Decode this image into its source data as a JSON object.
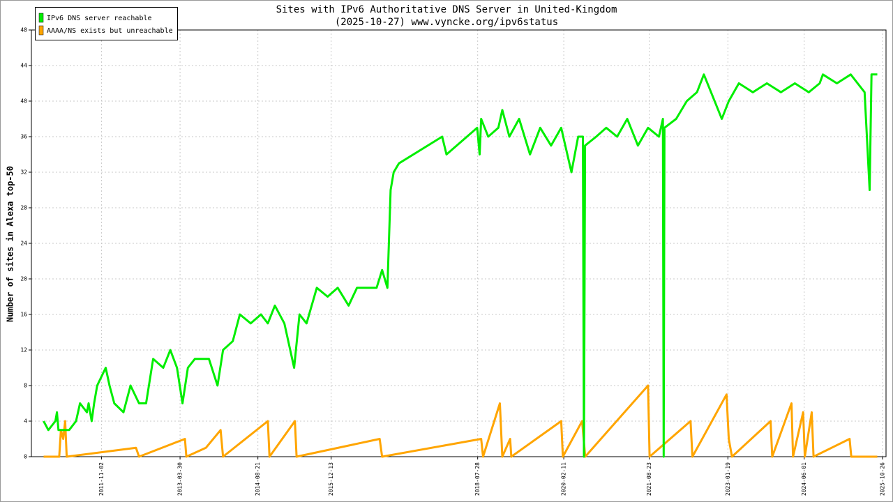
{
  "chart_data": {
    "type": "line",
    "title": "Sites with IPv6 Authoritative DNS Server in United-Kingdom",
    "subtitle": "(2025-10-27) www.vyncke.org/ipv6status",
    "y_label": "Number of sites in Alexa top-50",
    "xlim": [
      "2010-08-01",
      "2025-11-18"
    ],
    "xticks": [
      "2011-11-02",
      "2013-03-30",
      "2014-08-21",
      "2015-12-13",
      "2018-07-28",
      "2020-02-11",
      "2021-08-23",
      "2023-01-19",
      "2024-06-01",
      "2025-10-26"
    ],
    "ylim": [
      0,
      48
    ],
    "yticks": [
      0,
      4,
      8,
      12,
      16,
      20,
      24,
      28,
      32,
      36,
      40,
      44,
      48
    ],
    "grid": true,
    "legend": "top-left",
    "series": [
      {
        "name": "IPv6 DNS server reachable",
        "color": "#00ee00",
        "x": [
          "2010-10-20",
          "2010-11-20",
          "2011-01-05",
          "2011-01-15",
          "2011-01-25",
          "2011-04-05",
          "2011-05-20",
          "2011-06-15",
          "2011-07-30",
          "2011-08-10",
          "2011-08-30",
          "2011-09-15",
          "2011-10-05",
          "2011-11-30",
          "2011-12-25",
          "2012-01-25",
          "2012-03-25",
          "2012-05-10",
          "2012-07-05",
          "2012-08-20",
          "2012-10-05",
          "2012-12-10",
          "2013-01-25",
          "2013-03-10",
          "2013-04-15",
          "2013-05-20",
          "2013-07-05",
          "2013-10-05",
          "2013-11-30",
          "2014-01-05",
          "2014-03-10",
          "2014-04-25",
          "2014-07-05",
          "2014-09-10",
          "2014-10-25",
          "2014-12-10",
          "2015-02-10",
          "2015-04-15",
          "2015-05-20",
          "2015-07-05",
          "2015-09-10",
          "2015-11-20",
          "2016-01-25",
          "2016-04-05",
          "2016-05-30",
          "2016-10-05",
          "2016-11-10",
          "2016-12-15",
          "2017-01-05",
          "2017-01-25",
          "2017-02-28",
          "2017-12-08",
          "2018-01-05",
          "2018-07-25",
          "2018-08-10",
          "2018-08-20",
          "2018-10-05",
          "2018-12-10",
          "2019-01-05",
          "2019-02-20",
          "2019-04-25",
          "2019-07-05",
          "2019-09-10",
          "2019-11-20",
          "2020-01-25",
          "2020-04-01",
          "2020-05-15",
          "2020-06-15",
          "2020-06-22",
          "2020-06-29",
          "2020-09-10",
          "2020-11-15",
          "2021-01-25",
          "2021-04-01",
          "2021-06-10",
          "2021-08-15",
          "2021-10-25",
          "2021-11-20",
          "2021-11-25",
          "2021-11-30",
          "2022-02-15",
          "2022-04-25",
          "2022-07-01",
          "2022-08-15",
          "2022-10-01",
          "2022-12-10",
          "2023-01-25",
          "2023-04-01",
          "2023-07-01",
          "2023-10-01",
          "2024-01-01",
          "2024-04-01",
          "2024-07-01",
          "2024-09-10",
          "2024-10-01",
          "2025-01-01",
          "2025-04-01",
          "2025-07-01",
          "2025-08-03",
          "2025-08-15",
          "2025-09-22"
        ],
        "values": [
          4,
          3,
          4,
          5,
          3,
          3,
          4,
          6,
          5,
          6,
          4,
          6,
          8,
          10,
          8,
          6,
          5,
          8,
          6,
          6,
          11,
          10,
          12,
          10,
          6,
          10,
          11,
          11,
          8,
          12,
          13,
          16,
          15,
          16,
          15,
          17,
          15,
          10,
          16,
          15,
          19,
          18,
          19,
          17,
          19,
          19,
          21,
          19,
          30,
          32,
          33,
          36,
          34,
          37,
          34,
          38,
          36,
          37,
          39,
          36,
          38,
          34,
          37,
          35,
          37,
          32,
          36,
          36,
          0,
          35,
          36,
          37,
          36,
          38,
          35,
          37,
          36,
          38,
          0,
          37,
          38,
          40,
          41,
          43,
          41,
          38,
          40,
          42,
          41,
          42,
          41,
          42,
          41,
          42,
          43,
          42,
          43,
          41,
          30,
          43,
          43
        ]
      },
      {
        "name": "AAAA/NS exists but unreachable",
        "color": "#ffa500",
        "x": [
          "2010-10-20",
          "2011-01-30",
          "2011-02-10",
          "2011-02-25",
          "2011-03-10",
          "2011-03-20",
          "2012-06-15",
          "2012-07-05",
          "2013-05-01",
          "2013-05-10",
          "2013-09-15",
          "2013-12-20",
          "2014-01-05",
          "2014-10-25",
          "2014-11-05",
          "2015-04-20",
          "2015-05-01",
          "2016-10-25",
          "2016-11-10",
          "2018-08-20",
          "2018-09-01",
          "2018-12-20",
          "2019-01-05",
          "2019-02-25",
          "2019-03-05",
          "2020-01-25",
          "2020-02-05",
          "2020-06-10",
          "2020-06-30",
          "2021-08-15",
          "2021-08-25",
          "2022-05-20",
          "2022-06-01",
          "2023-01-10",
          "2023-01-25",
          "2023-02-15",
          "2023-10-25",
          "2023-11-05",
          "2024-03-10",
          "2024-03-20",
          "2024-05-25",
          "2024-06-05",
          "2024-07-20",
          "2024-08-01",
          "2025-03-25",
          "2025-04-05",
          "2025-09-22"
        ],
        "values": [
          0,
          0,
          3,
          2,
          4,
          0,
          1,
          0,
          2,
          0,
          1,
          3,
          0,
          4,
          0,
          4,
          0,
          2,
          0,
          2,
          0,
          6,
          0,
          2,
          0,
          4,
          0,
          4,
          0,
          8,
          0,
          4,
          0,
          7,
          2,
          0,
          4,
          0,
          6,
          0,
          5,
          0,
          5,
          0,
          2,
          0,
          0
        ]
      }
    ]
  }
}
